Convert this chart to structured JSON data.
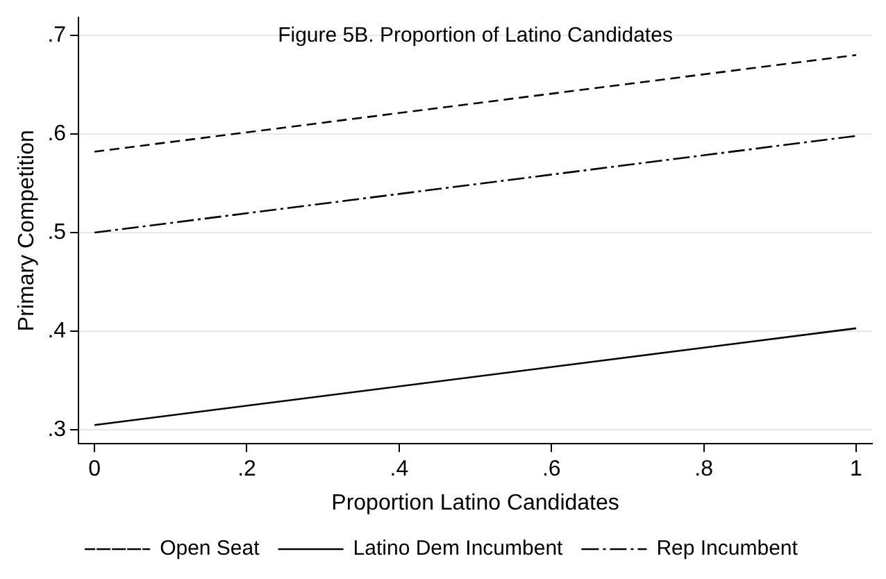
{
  "chart_data": {
    "type": "line",
    "title": "Figure 5B. Proportion of Latino Candidates",
    "xlabel": "Proportion Latino Candidates",
    "ylabel": "Primary Competition",
    "x": [
      0,
      1
    ],
    "series": [
      {
        "name": "Open Seat",
        "color": "#000000",
        "values": [
          0.582,
          0.68
        ],
        "line_style": "dashed"
      },
      {
        "name": "Latino Dem Incumbent",
        "color": "#000000",
        "values": [
          0.305,
          0.403
        ],
        "line_style": "solid"
      },
      {
        "name": "Rep Incumbent",
        "color": "#000000",
        "values": [
          0.5,
          0.598
        ],
        "line_style": "dashdot"
      }
    ],
    "xlim": [
      -0.021,
      1.021
    ],
    "xticks": [
      {
        "value": 0,
        "label": "0"
      },
      {
        "value": 0.2,
        "label": ".2"
      },
      {
        "value": 0.4,
        "label": ".4"
      },
      {
        "value": 0.6,
        "label": ".6"
      },
      {
        "value": 0.8,
        "label": ".8"
      },
      {
        "value": 1,
        "label": "1"
      }
    ],
    "ylim": [
      0.286,
      0.718
    ],
    "yticks": [
      {
        "value": 0.3,
        "label": ".3"
      },
      {
        "value": 0.4,
        "label": ".4"
      },
      {
        "value": 0.5,
        "label": ".5"
      },
      {
        "value": 0.6,
        "label": ".6"
      },
      {
        "value": 0.7,
        "label": ".7"
      }
    ],
    "grid": "y",
    "legend": "bottom",
    "marker": "none"
  }
}
